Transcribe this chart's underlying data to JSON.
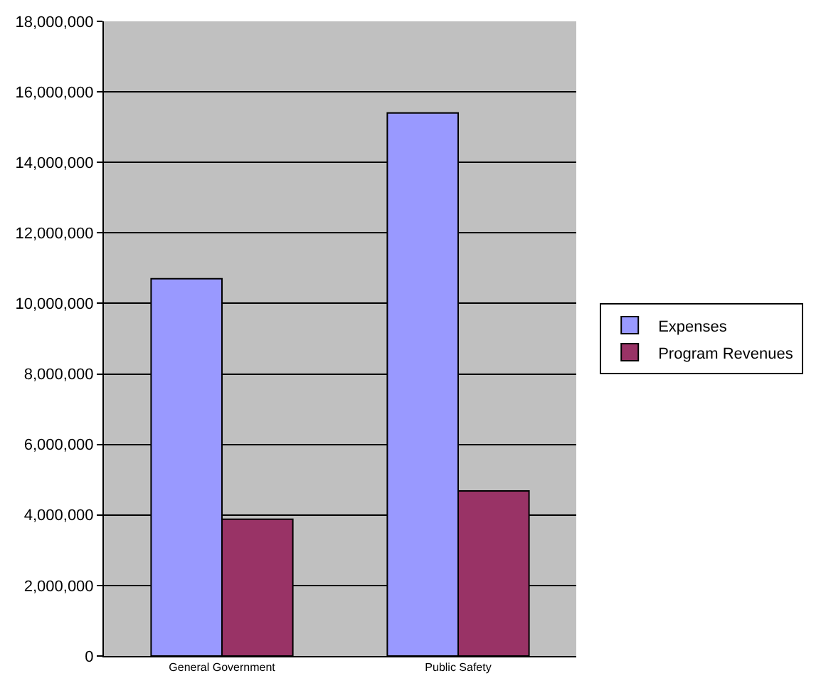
{
  "chart_data": {
    "type": "bar",
    "categories": [
      "General Government",
      "Public Safety"
    ],
    "series": [
      {
        "name": "Expenses",
        "color": "#9999ff",
        "values": [
          10700000,
          15400000
        ]
      },
      {
        "name": "Program Revenues",
        "color": "#993366",
        "values": [
          3880000,
          4680000
        ]
      }
    ],
    "ylim": [
      0,
      18000000
    ],
    "yticks": [
      {
        "value": 0,
        "label": "0"
      },
      {
        "value": 2000000,
        "label": "2,000,000"
      },
      {
        "value": 4000000,
        "label": "4,000,000"
      },
      {
        "value": 6000000,
        "label": "6,000,000"
      },
      {
        "value": 8000000,
        "label": "8,000,000"
      },
      {
        "value": 10000000,
        "label": "10,000,000"
      },
      {
        "value": 12000000,
        "label": "12,000,000"
      },
      {
        "value": 14000000,
        "label": "14,000,000"
      },
      {
        "value": 16000000,
        "label": "16,000,000"
      },
      {
        "value": 18000000,
        "label": "18,000,000"
      }
    ],
    "grid": "y",
    "legend": "right"
  }
}
